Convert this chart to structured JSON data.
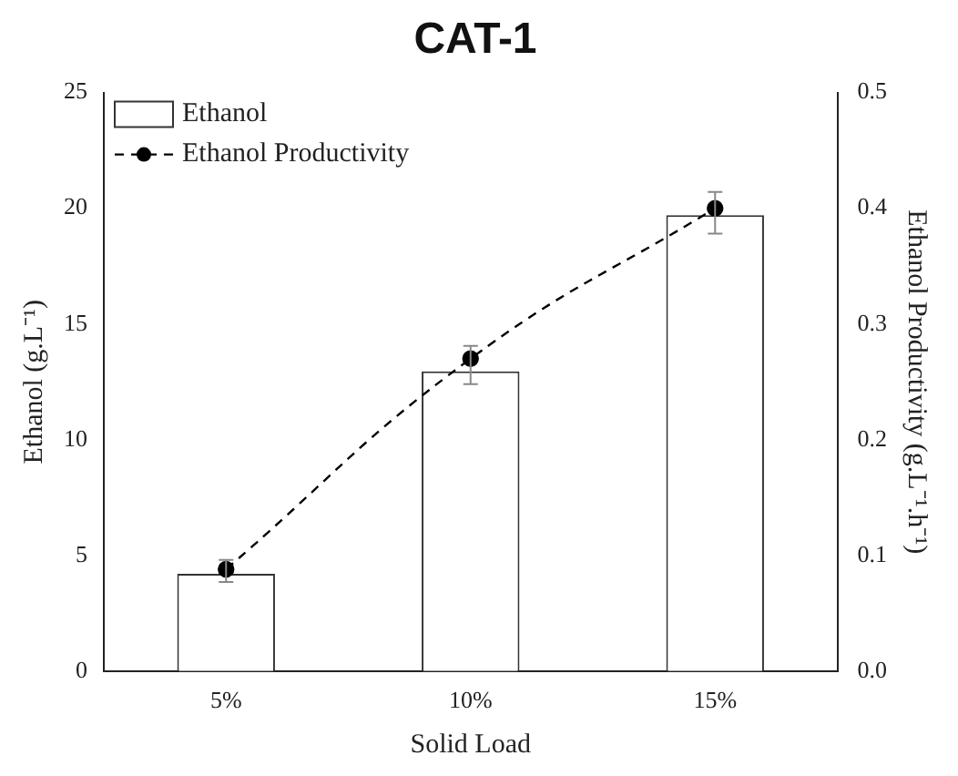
{
  "chart_data": {
    "type": "bar",
    "title": "CAT-1",
    "xlabel": "Solid Load",
    "ylabel": "Ethanol (g.L⁻¹)",
    "y2label": "Ethanol Productivity (g.L⁻¹.h⁻¹)",
    "categories": [
      "5%",
      "10%",
      "15%"
    ],
    "series": [
      {
        "name": "Ethanol",
        "color": "#333333",
        "values": [
          4.2,
          12.95,
          19.7
        ],
        "errors": [
          [
            3.85,
            4.8
          ],
          [
            12.4,
            14.05
          ],
          [
            18.9,
            20.7
          ]
        ]
      },
      {
        "name": "Ethanol Productivity",
        "type": "line",
        "axis": "y2",
        "color": "#000000",
        "values": [
          0.088,
          0.27,
          0.4
        ],
        "marker": "circle",
        "line_style": "dashed"
      }
    ],
    "ylim": [
      0,
      25
    ],
    "yticks": [
      0,
      5,
      10,
      15,
      20,
      25
    ],
    "y2lim": [
      0,
      0.5
    ],
    "y2ticks": [
      {
        "value": 0,
        "label": "0.0"
      },
      0.1,
      0.2,
      0.3,
      0.4,
      0.5
    ],
    "grid": false,
    "legend": "top left"
  }
}
